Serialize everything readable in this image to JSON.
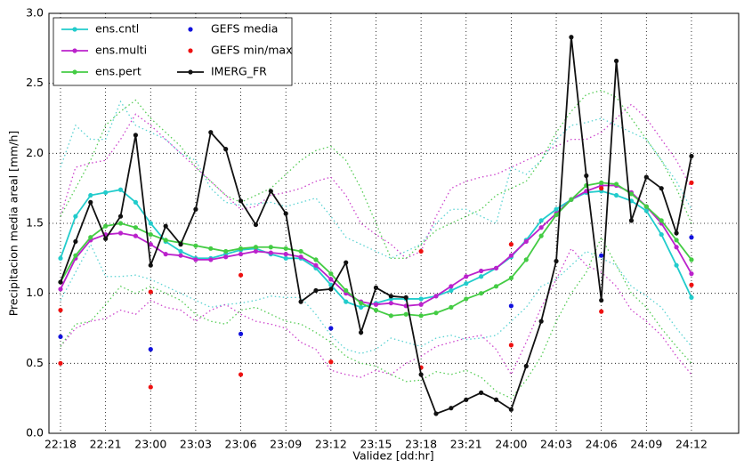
{
  "chart_data": {
    "type": "line",
    "xlabel": "Validez [dd:hr]",
    "ylabel": "Precipitacion media areal [mm/h]",
    "categories": [
      "22:18",
      null,
      null,
      "22:21",
      null,
      null,
      "23:00",
      null,
      null,
      "23:03",
      null,
      null,
      "23:06",
      null,
      null,
      "23:09",
      null,
      null,
      "23:12",
      null,
      null,
      "23:15",
      null,
      null,
      "23:18",
      null,
      null,
      "23:21",
      null,
      null,
      "24:00",
      null,
      null,
      "24:03",
      null,
      null,
      "24:06",
      null,
      null,
      "24:09",
      null,
      null,
      "24:12"
    ],
    "ylim": [
      0,
      3
    ],
    "yticks": [
      {
        "value": 0,
        "label": "0.0"
      },
      {
        "value": 0.5,
        "label": "0.5"
      },
      {
        "value": 1,
        "label": "1.0"
      },
      {
        "value": 1.5,
        "label": "1.5"
      },
      {
        "value": 2,
        "label": "2.0"
      },
      {
        "value": 2.5,
        "label": "2.5"
      },
      {
        "value": 3,
        "label": "3.0"
      }
    ],
    "grid": true,
    "grid_style": "dotted",
    "legend": "upper left",
    "series": [
      {
        "color": "#5bd3d3",
        "linestyle": "dotted",
        "values": [
          1.9,
          2.2,
          2.1,
          2.1,
          2.37,
          2.2,
          2.15,
          2.1,
          2.0,
          1.95,
          1.75,
          1.65,
          1.63,
          1.64,
          1.65,
          1.62,
          1.65,
          1.68,
          1.55,
          1.4,
          1.35,
          1.3,
          1.25,
          1.3,
          1.35,
          1.5,
          1.6,
          1.6,
          1.55,
          1.5,
          1.9,
          1.85,
          1.95,
          2.1,
          2.2,
          2.22,
          2.25,
          2.2,
          2.15,
          2.1,
          1.95,
          1.8,
          1.6
        ]
      },
      {
        "color": "#5bd3d3",
        "linestyle": "dotted",
        "values": [
          0.95,
          1.15,
          1.35,
          1.12,
          1.12,
          1.13,
          1.1,
          1.05,
          1.0,
          0.95,
          0.9,
          0.92,
          0.93,
          0.95,
          0.98,
          0.97,
          0.97,
          0.85,
          0.7,
          0.6,
          0.57,
          0.6,
          0.68,
          0.65,
          0.62,
          0.68,
          0.7,
          0.67,
          0.68,
          0.7,
          0.8,
          0.9,
          1.05,
          1.1,
          1.2,
          1.3,
          1.25,
          1.2,
          1.05,
          0.98,
          0.9,
          0.75,
          0.62
        ]
      },
      {
        "color": "#cc44cc",
        "linestyle": "dotted",
        "values": [
          1.55,
          1.9,
          1.93,
          1.95,
          2.1,
          2.28,
          2.2,
          2.1,
          2.0,
          1.9,
          1.8,
          1.7,
          1.6,
          1.62,
          1.7,
          1.72,
          1.75,
          1.8,
          1.83,
          1.7,
          1.5,
          1.42,
          1.35,
          1.25,
          1.3,
          1.55,
          1.75,
          1.8,
          1.83,
          1.85,
          1.9,
          1.95,
          2.0,
          2.05,
          2.1,
          2.1,
          2.15,
          2.25,
          2.35,
          2.25,
          2.1,
          1.95,
          1.75
        ]
      },
      {
        "color": "#cc44cc",
        "linestyle": "dotted",
        "values": [
          0.62,
          0.75,
          0.8,
          0.82,
          0.88,
          0.85,
          0.95,
          0.9,
          0.88,
          0.8,
          0.88,
          0.92,
          0.85,
          0.8,
          0.78,
          0.75,
          0.65,
          0.6,
          0.45,
          0.42,
          0.4,
          0.45,
          0.42,
          0.5,
          0.55,
          0.62,
          0.65,
          0.68,
          0.7,
          0.6,
          0.42,
          0.65,
          0.9,
          1.1,
          1.32,
          1.2,
          1.15,
          1.05,
          0.88,
          0.8,
          0.7,
          0.55,
          0.42
        ]
      },
      {
        "color": "#55cc55",
        "linestyle": "dotted",
        "values": [
          1.55,
          1.75,
          1.95,
          2.2,
          2.3,
          2.38,
          2.25,
          2.15,
          2.05,
          1.9,
          1.8,
          1.7,
          1.65,
          1.7,
          1.75,
          1.85,
          1.95,
          2.02,
          2.05,
          1.95,
          1.75,
          1.5,
          1.25,
          1.25,
          1.35,
          1.45,
          1.5,
          1.55,
          1.6,
          1.7,
          1.75,
          1.8,
          1.95,
          2.15,
          2.3,
          2.42,
          2.45,
          2.4,
          2.25,
          2.1,
          1.95,
          1.75,
          1.5
        ]
      },
      {
        "color": "#55cc55",
        "linestyle": "dotted",
        "values": [
          0.62,
          0.78,
          0.8,
          0.92,
          1.05,
          1.0,
          1.05,
          1.0,
          0.95,
          0.85,
          0.8,
          0.78,
          0.88,
          0.9,
          0.85,
          0.8,
          0.78,
          0.72,
          0.65,
          0.55,
          0.5,
          0.48,
          0.42,
          0.37,
          0.38,
          0.44,
          0.42,
          0.45,
          0.4,
          0.3,
          0.25,
          0.38,
          0.55,
          0.8,
          1.0,
          1.15,
          1.4,
          1.2,
          1.0,
          0.9,
          0.75,
          0.62,
          0.5
        ]
      },
      {
        "name": "ens.cntl",
        "color": "#22cccc",
        "linestyle": "solid",
        "marker": true,
        "values": [
          1.25,
          1.55,
          1.7,
          1.72,
          1.74,
          1.65,
          1.5,
          1.37,
          1.3,
          1.25,
          1.25,
          1.28,
          1.31,
          1.32,
          1.28,
          1.25,
          1.25,
          1.18,
          1.06,
          0.94,
          0.9,
          0.93,
          0.96,
          0.96,
          0.96,
          0.98,
          1.02,
          1.07,
          1.12,
          1.18,
          1.26,
          1.38,
          1.52,
          1.6,
          1.67,
          1.72,
          1.73,
          1.7,
          1.66,
          1.59,
          1.42,
          1.2,
          0.97
        ]
      },
      {
        "name": "ens.multi",
        "color": "#bb22cc",
        "linestyle": "solid",
        "marker": true,
        "values": [
          1.03,
          1.25,
          1.38,
          1.42,
          1.43,
          1.41,
          1.35,
          1.28,
          1.27,
          1.24,
          1.24,
          1.26,
          1.28,
          1.3,
          1.29,
          1.28,
          1.26,
          1.2,
          1.1,
          1.0,
          0.94,
          0.92,
          0.93,
          0.91,
          0.92,
          0.98,
          1.05,
          1.12,
          1.16,
          1.18,
          1.27,
          1.37,
          1.47,
          1.57,
          1.67,
          1.73,
          1.77,
          1.77,
          1.72,
          1.62,
          1.5,
          1.33,
          1.14
        ]
      },
      {
        "name": "ens.pert",
        "color": "#44cc44",
        "linestyle": "solid",
        "marker": true,
        "values": [
          1.08,
          1.27,
          1.4,
          1.48,
          1.5,
          1.47,
          1.42,
          1.38,
          1.36,
          1.34,
          1.32,
          1.3,
          1.32,
          1.33,
          1.33,
          1.32,
          1.3,
          1.24,
          1.14,
          1.02,
          0.93,
          0.88,
          0.84,
          0.85,
          0.84,
          0.86,
          0.9,
          0.96,
          1.0,
          1.05,
          1.11,
          1.24,
          1.41,
          1.56,
          1.67,
          1.77,
          1.79,
          1.78,
          1.71,
          1.62,
          1.52,
          1.38,
          1.24
        ]
      },
      {
        "name": "GEFS media",
        "color": "#1111dd",
        "linestyle": "none",
        "marker": true,
        "values": [
          0.69,
          null,
          null,
          null,
          null,
          null,
          0.6,
          null,
          null,
          null,
          null,
          null,
          0.71,
          null,
          null,
          null,
          null,
          null,
          0.75,
          null,
          null,
          null,
          null,
          null,
          null,
          null,
          null,
          null,
          null,
          null,
          0.91,
          null,
          null,
          null,
          null,
          null,
          1.27,
          null,
          null,
          null,
          null,
          null,
          1.4
        ]
      },
      {
        "name": "GEFS min/max",
        "color": "#ee1111",
        "linestyle": "none",
        "marker": true,
        "values": [
          0.88,
          null,
          null,
          null,
          null,
          null,
          1.01,
          null,
          null,
          null,
          null,
          null,
          1.13,
          null,
          null,
          null,
          null,
          null,
          null,
          null,
          null,
          null,
          null,
          null,
          1.3,
          null,
          null,
          null,
          null,
          null,
          1.35,
          null,
          null,
          null,
          null,
          null,
          1.75,
          null,
          null,
          null,
          null,
          null,
          1.79
        ]
      },
      {
        "color": "#ee1111",
        "linestyle": "none",
        "marker": true,
        "values": [
          0.5,
          null,
          null,
          null,
          null,
          null,
          0.33,
          null,
          null,
          null,
          null,
          null,
          0.42,
          null,
          null,
          null,
          null,
          null,
          0.51,
          null,
          null,
          null,
          null,
          null,
          0.47,
          null,
          null,
          null,
          null,
          null,
          0.63,
          null,
          null,
          null,
          null,
          null,
          0.87,
          null,
          null,
          null,
          null,
          null,
          1.06
        ]
      },
      {
        "name": "IMERG_FR",
        "color": "#111111",
        "linestyle": "solid",
        "marker": true,
        "values": [
          1.08,
          1.37,
          1.65,
          1.39,
          1.55,
          2.13,
          1.2,
          1.48,
          1.35,
          1.6,
          2.15,
          2.03,
          1.66,
          1.49,
          1.73,
          1.57,
          0.94,
          1.02,
          1.03,
          1.22,
          0.72,
          1.04,
          0.98,
          0.97,
          0.42,
          0.14,
          0.18,
          0.24,
          0.29,
          0.24,
          0.17,
          0.48,
          0.8,
          1.23,
          2.83,
          1.84,
          0.95,
          2.66,
          1.52,
          1.83,
          1.75,
          1.43,
          1.98
        ]
      }
    ]
  }
}
